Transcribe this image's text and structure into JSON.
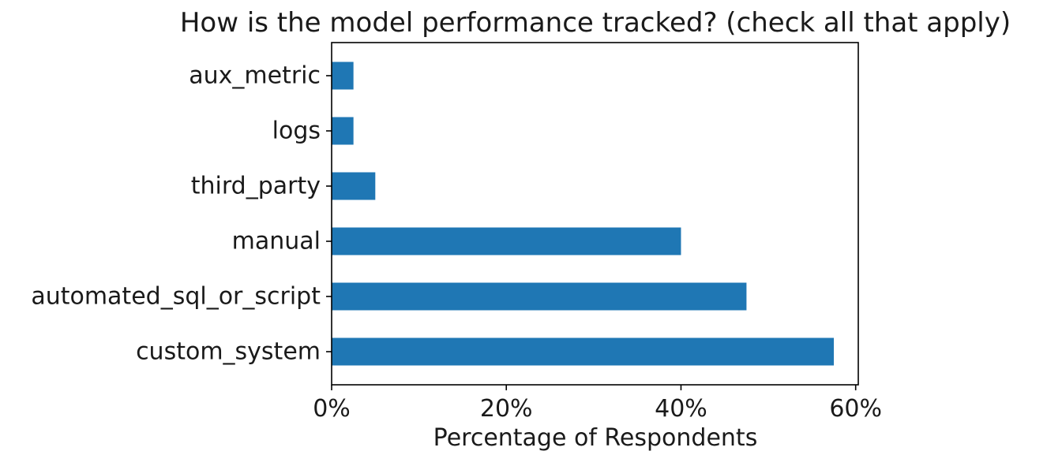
{
  "chart_data": {
    "type": "bar",
    "orientation": "horizontal",
    "title": "How is the model performance tracked? (check all that apply)",
    "xlabel": "Percentage of Respondents",
    "ylabel": "",
    "categories": [
      "custom_system",
      "automated_sql_or_script",
      "manual",
      "third_party",
      "logs",
      "aux_metric"
    ],
    "values": [
      57.5,
      47.5,
      40.0,
      5.0,
      2.5,
      2.5
    ],
    "xlim": [
      0,
      60.3
    ],
    "xticks": [
      0,
      20,
      40,
      60
    ],
    "xtick_labels": [
      "0%",
      "20%",
      "40%",
      "60%"
    ],
    "bar_color": "#1f77b4",
    "grid": false,
    "legend": "none"
  }
}
